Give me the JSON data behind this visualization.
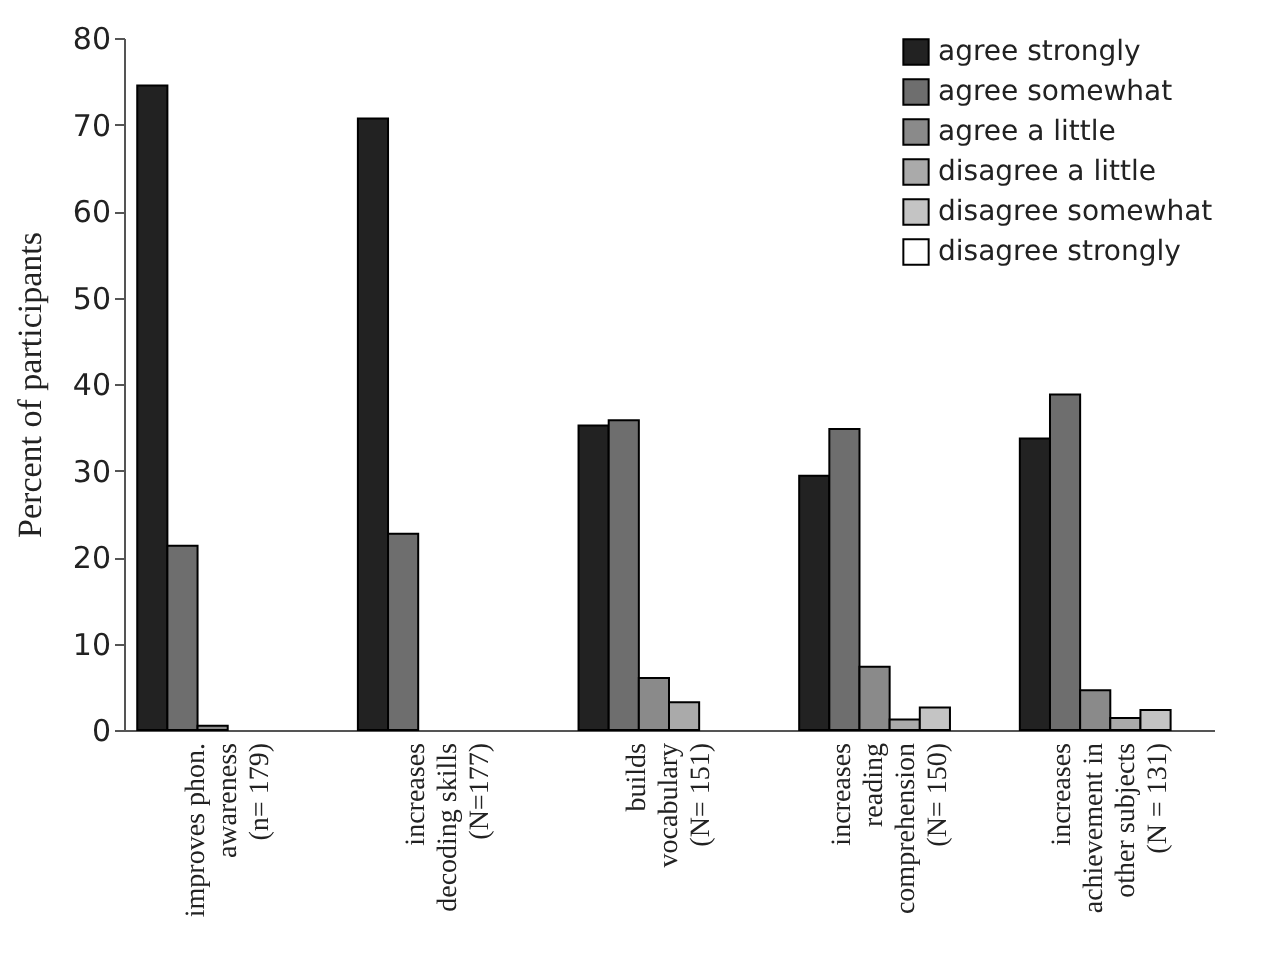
{
  "chart_data": {
    "type": "bar",
    "ylabel": "Percent of participants",
    "categories": [
      "improves phon.\nawareness\n(n= 179)",
      "increases\ndecoding skills\n(N=177)",
      "builds\nvocabulary\n(N= 151)",
      "increases\nreading\ncomprehension\n(N= 150)",
      "increases\nachievement in\nother subjects\n(N = 131)"
    ],
    "series": [
      {
        "name": "agree strongly",
        "color": "#222222",
        "values": [
          74.5,
          70.7,
          35.2,
          29.4,
          33.7
        ]
      },
      {
        "name": "agree somewhat",
        "color": "#6e6e6e",
        "values": [
          21.3,
          22.7,
          35.8,
          34.8,
          38.8
        ]
      },
      {
        "name": "agree a little",
        "color": "#8a8a8a",
        "values": [
          0.5,
          0,
          6,
          7.3,
          4.6
        ]
      },
      {
        "name": "disagree a little",
        "color": "#aaaaaa",
        "values": [
          0,
          0,
          3.2,
          1.2,
          1.4
        ]
      },
      {
        "name": "disagree somewhat",
        "color": "#c4c4c4",
        "values": [
          0,
          0,
          0,
          2.6,
          2.3
        ]
      },
      {
        "name": "disagree strongly",
        "color": "#ffffff",
        "values": [
          0,
          0,
          0,
          0,
          0
        ]
      }
    ],
    "ylim": [
      0,
      80
    ],
    "yticks": [
      0,
      10,
      20,
      30,
      40,
      50,
      60,
      70,
      80
    ],
    "grid": false,
    "legend": "top right"
  }
}
